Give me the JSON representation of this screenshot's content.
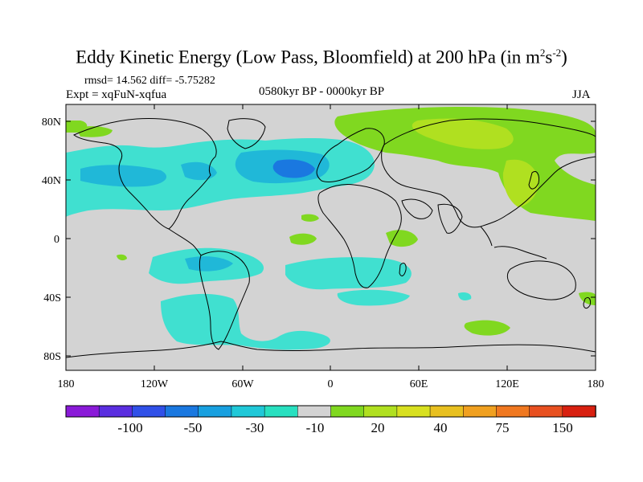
{
  "title": {
    "main": "Eddy Kinetic Energy (Low Pass, Bloomfield) at 200 hPa (in m",
    "sup1": "2",
    "mid": "s",
    "sup2": "-2",
    "end": ")"
  },
  "stats": "rmsd= 14.562 diff= -5.75282",
  "expt": "Expt = xqFuN-xqfua",
  "period": "0580kyr BP - 0000kyr BP",
  "season": "JJA",
  "axes": {
    "lat_labels": [
      "80N",
      "40N",
      "0",
      "40S",
      "80S"
    ],
    "lon_labels": [
      "180",
      "120W",
      "60W",
      "0",
      "60E",
      "120E",
      "180"
    ]
  },
  "colorbar": {
    "colors": [
      "#8a1ad8",
      "#5a2ee0",
      "#3050e8",
      "#1a78e0",
      "#18a0e0",
      "#20c8d8",
      "#28e0c0",
      "#d3d3d3",
      "#80d820",
      "#b0e020",
      "#d8e020",
      "#e8c020",
      "#f0a020",
      "#f07820",
      "#e85020",
      "#d82010"
    ],
    "labels": [
      "-100",
      "-50",
      "-30",
      "-10",
      "20",
      "40",
      "75",
      "150"
    ]
  },
  "colors": {
    "background": "#d3d3d3",
    "negative_light": "#40e0d0",
    "negative_mid": "#20b8d8",
    "negative_dark": "#1a78e0",
    "positive_light": "#80d820",
    "positive_mid": "#b0e020"
  }
}
